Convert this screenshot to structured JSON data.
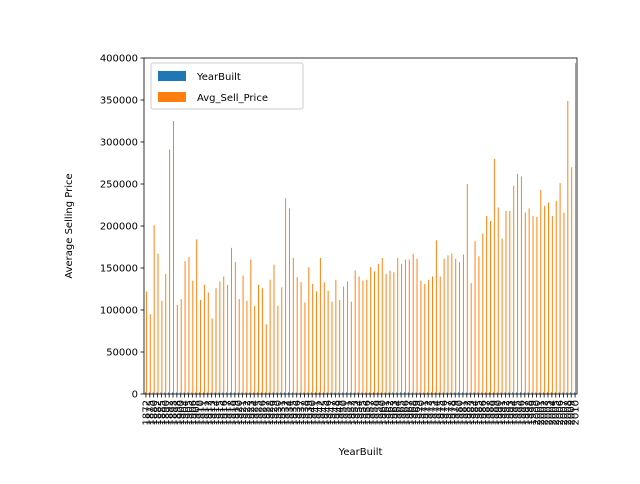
{
  "chart_data": {
    "type": "bar",
    "title": "",
    "xlabel": "YearBuilt",
    "ylabel": "Average Selling Price",
    "ylim": [
      0,
      400000
    ],
    "yticks": [
      0,
      50000,
      100000,
      150000,
      200000,
      250000,
      300000,
      350000,
      400000
    ],
    "grid": false,
    "legend_position": "top-left",
    "categories": [
      "1872",
      "1875",
      "1880",
      "1882",
      "1885",
      "1890",
      "1892",
      "1893",
      "1898",
      "1900",
      "1904",
      "1905",
      "1906",
      "1908",
      "1910",
      "1911",
      "1912",
      "1913",
      "1914",
      "1915",
      "1916",
      "1917",
      "1918",
      "1919",
      "1920",
      "1921",
      "1922",
      "1923",
      "1924",
      "1925",
      "1926",
      "1927",
      "1928",
      "1929",
      "1930",
      "1931",
      "1932",
      "1934",
      "1935",
      "1936",
      "1937",
      "1938",
      "1939",
      "1940",
      "1941",
      "1942",
      "1945",
      "1946",
      "1947",
      "1948",
      "1949",
      "1950",
      "1951",
      "1952",
      "1953",
      "1954",
      "1955",
      "1956",
      "1957",
      "1958",
      "1959",
      "1960",
      "1961",
      "1962",
      "1963",
      "1964",
      "1965",
      "1966",
      "1967",
      "1968",
      "1969",
      "1970",
      "1971",
      "1972",
      "1973",
      "1974",
      "1975",
      "1976",
      "1977",
      "1978",
      "1979",
      "1980",
      "1981",
      "1982",
      "1983",
      "1984",
      "1985",
      "1986",
      "1987",
      "1988",
      "1989",
      "1990",
      "1991",
      "1992",
      "1993",
      "1994",
      "1995",
      "1996",
      "1997",
      "1998",
      "1999",
      "2000",
      "2001",
      "2002",
      "2003",
      "2004",
      "2005",
      "2006",
      "2007",
      "2008",
      "2009",
      "2010"
    ],
    "series": [
      {
        "name": "YearBuilt",
        "color": "#1f77b4",
        "values": [
          1872,
          1875,
          1880,
          1882,
          1885,
          1890,
          1892,
          1893,
          1898,
          1900,
          1904,
          1905,
          1906,
          1908,
          1910,
          1911,
          1912,
          1913,
          1914,
          1915,
          1916,
          1917,
          1918,
          1919,
          1920,
          1921,
          1922,
          1923,
          1924,
          1925,
          1926,
          1927,
          1928,
          1929,
          1930,
          1931,
          1932,
          1934,
          1935,
          1936,
          1937,
          1938,
          1939,
          1940,
          1941,
          1942,
          1945,
          1946,
          1947,
          1948,
          1949,
          1950,
          1951,
          1952,
          1953,
          1954,
          1955,
          1956,
          1957,
          1958,
          1959,
          1960,
          1961,
          1962,
          1963,
          1964,
          1965,
          1966,
          1967,
          1968,
          1969,
          1970,
          1971,
          1972,
          1973,
          1974,
          1975,
          1976,
          1977,
          1978,
          1979,
          1980,
          1981,
          1982,
          1983,
          1984,
          1985,
          1986,
          1987,
          1988,
          1989,
          1990,
          1991,
          1992,
          1993,
          1994,
          1995,
          1996,
          1997,
          1998,
          1999,
          2000,
          2001,
          2002,
          2003,
          2004,
          2005,
          2006,
          2007,
          2008,
          2009,
          2010
        ]
      },
      {
        "name": "Avg_Sell_Price",
        "color": "#ff7f0e",
        "values": [
          122000,
          95000,
          201000,
          167000,
          111000,
          143000,
          291000,
          325000,
          106000,
          113000,
          158000,
          163000,
          135000,
          184000,
          112000,
          130000,
          121000,
          90000,
          126000,
          134000,
          140000,
          130000,
          174000,
          157000,
          113000,
          141000,
          111000,
          160000,
          105000,
          130000,
          126000,
          83000,
          136000,
          154000,
          105000,
          127000,
          233000,
          221000,
          162000,
          139000,
          133000,
          109000,
          151000,
          131000,
          122000,
          162000,
          133000,
          123000,
          110000,
          136000,
          112000,
          128000,
          134000,
          110000,
          147000,
          140000,
          135000,
          136000,
          151000,
          146000,
          155000,
          162000,
          143000,
          147000,
          145000,
          162000,
          155000,
          160000,
          160000,
          167000,
          161000,
          135000,
          131000,
          136000,
          140000,
          183000,
          140000,
          161000,
          165000,
          167000,
          161000,
          157000,
          166000,
          250000,
          132000,
          182000,
          164000,
          191000,
          212000,
          206000,
          280000,
          222000,
          185000,
          218000,
          218000,
          248000,
          262000,
          259000,
          216000,
          221000,
          212000,
          211000,
          243000,
          224000,
          228000,
          212000,
          230000,
          251000,
          216000,
          349000,
          270000,
          394000
        ]
      }
    ]
  }
}
